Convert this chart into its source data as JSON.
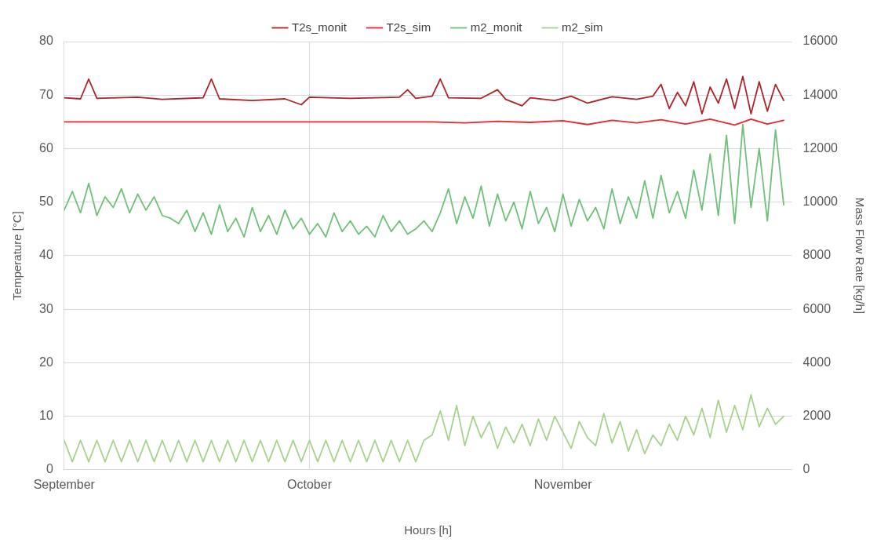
{
  "chart_data": {
    "type": "line",
    "xlabel": "Hours [h]",
    "ylabel": "Temperature [°C]",
    "y2label": "Mass Flow Rate [kg/h]",
    "xlim": [
      "--09-01",
      "--11-29"
    ],
    "xticks": [
      {
        "value": "--09-01",
        "label": "September"
      },
      {
        "value": "--10-01",
        "label": "October"
      },
      {
        "value": "--11-01",
        "label": "November"
      }
    ],
    "ylim": [
      0,
      80
    ],
    "yticks": [
      0,
      10,
      20,
      30,
      40,
      50,
      60,
      70,
      80
    ],
    "y2lim": [
      0,
      16000
    ],
    "y2ticks": [
      0,
      2000,
      4000,
      6000,
      8000,
      10000,
      12000,
      14000,
      16000
    ],
    "grid": true,
    "legend": "top",
    "marker": "none",
    "line_style": "solid",
    "x": [
      "--09-01",
      "--09-02",
      "--09-03",
      "--09-04",
      "--09-05",
      "--09-06",
      "--09-07",
      "--09-08",
      "--09-09",
      "--09-10",
      "--09-11",
      "--09-12",
      "--09-13",
      "--09-14",
      "--09-15",
      "--09-16",
      "--09-17",
      "--09-18",
      "--09-19",
      "--09-20",
      "--09-21",
      "--09-22",
      "--09-23",
      "--09-24",
      "--09-25",
      "--09-26",
      "--09-27",
      "--09-28",
      "--09-29",
      "--09-30",
      "--10-01",
      "--10-02",
      "--10-03",
      "--10-04",
      "--10-05",
      "--10-06",
      "--10-07",
      "--10-08",
      "--10-09",
      "--10-10",
      "--10-11",
      "--10-12",
      "--10-13",
      "--10-14",
      "--10-15",
      "--10-16",
      "--10-17",
      "--10-18",
      "--10-19",
      "--10-20",
      "--10-21",
      "--10-22",
      "--10-23",
      "--10-24",
      "--10-25",
      "--10-26",
      "--10-27",
      "--10-28",
      "--10-29",
      "--10-30",
      "--10-31",
      "--11-01",
      "--11-02",
      "--11-03",
      "--11-04",
      "--11-05",
      "--11-06",
      "--11-07",
      "--11-08",
      "--11-09",
      "--11-10",
      "--11-11",
      "--11-12",
      "--11-13",
      "--11-14",
      "--11-15",
      "--11-16",
      "--11-17",
      "--11-18",
      "--11-19",
      "--11-20",
      "--11-21",
      "--11-22",
      "--11-23",
      "--11-24",
      "--11-25",
      "--11-26",
      "--11-27",
      "--11-28"
    ],
    "series": [
      {
        "name": "T2s_monit",
        "color": "#b0222a",
        "x": [
          "--09-01",
          "--09-03",
          "--09-04",
          "--09-05",
          "--09-10",
          "--09-13",
          "--09-18",
          "--09-19",
          "--09-20",
          "--09-24",
          "--09-28",
          "--09-30",
          "--10-01",
          "--10-06",
          "--10-12",
          "--10-13",
          "--10-14",
          "--10-16",
          "--10-17",
          "--10-18",
          "--10-22",
          "--10-24",
          "--10-25",
          "--10-27",
          "--10-28",
          "--10-31",
          "--11-02",
          "--11-04",
          "--11-07",
          "--11-10",
          "--11-12",
          "--11-13",
          "--11-14",
          "--11-15",
          "--11-16",
          "--11-17",
          "--11-18",
          "--11-19",
          "--11-20",
          "--11-21",
          "--11-22",
          "--11-23",
          "--11-24",
          "--11-25",
          "--11-26",
          "--11-27",
          "--11-28"
        ],
        "values": [
          69.5,
          69.3,
          73,
          69.4,
          69.6,
          69.2,
          69.5,
          73,
          69.3,
          69.0,
          69.3,
          68.2,
          69.6,
          69.4,
          69.6,
          71,
          69.4,
          69.8,
          73,
          69.5,
          69.4,
          71,
          69.2,
          68.0,
          69.5,
          69.0,
          69.8,
          68.5,
          69.7,
          69.2,
          69.8,
          72,
          67.5,
          70.5,
          68,
          72.5,
          66.5,
          71.5,
          68.5,
          73,
          67.5,
          73.5,
          66.5,
          72.5,
          67,
          72,
          69
        ]
      },
      {
        "name": "T2s_sim",
        "color": "#e8282d",
        "x": [
          "--09-01",
          "--10-16",
          "--10-20",
          "--10-24",
          "--10-28",
          "--11-01",
          "--11-04",
          "--11-07",
          "--11-10",
          "--11-13",
          "--11-16",
          "--11-19",
          "--11-22",
          "--11-24",
          "--11-26",
          "--11-28"
        ],
        "values": [
          65,
          65,
          64.8,
          65.1,
          64.9,
          65.2,
          64.5,
          65.3,
          64.8,
          65.4,
          64.6,
          65.5,
          64.4,
          65.5,
          64.6,
          65.3
        ]
      },
      {
        "name": "m2_monit",
        "color": "#70bf7a",
        "axis": "y2",
        "values": [
          9700,
          10400,
          9600,
          10700,
          9500,
          10200,
          9800,
          10500,
          9600,
          10300,
          9700,
          10200,
          9500,
          9400,
          9200,
          9700,
          8900,
          9600,
          8800,
          9900,
          8900,
          9400,
          8700,
          9800,
          8900,
          9500,
          8800,
          9700,
          9000,
          9400,
          8800,
          9200,
          8700,
          9600,
          8900,
          9300,
          8800,
          9100,
          8700,
          9500,
          8900,
          9300,
          8800,
          9000,
          9300,
          8900,
          9600,
          10500,
          9200,
          10200,
          9400,
          10600,
          9100,
          10300,
          9300,
          10000,
          9000,
          10400,
          9200,
          9800,
          8900,
          10300,
          9100,
          10100,
          9300,
          9800,
          9000,
          10500,
          9200,
          10200,
          9400,
          10800,
          9400,
          11000,
          9600,
          10400,
          9400,
          11200,
          9700,
          11800,
          9500,
          12500,
          9200,
          12900,
          9800,
          12000,
          9300,
          12700,
          9900
        ]
      },
      {
        "name": "m2_sim",
        "color": "#a9d18e",
        "axis": "y2",
        "values": [
          1100,
          300,
          1100,
          300,
          1100,
          300,
          1100,
          300,
          1100,
          300,
          1100,
          300,
          1100,
          300,
          1100,
          300,
          1100,
          300,
          1100,
          300,
          1100,
          300,
          1100,
          300,
          1100,
          300,
          1100,
          300,
          1100,
          300,
          1100,
          300,
          1100,
          300,
          1100,
          300,
          1100,
          300,
          1100,
          300,
          1100,
          300,
          1100,
          300,
          1100,
          1300,
          2200,
          1100,
          2400,
          900,
          2000,
          1200,
          1800,
          800,
          1600,
          1000,
          1700,
          900,
          1900,
          1100,
          2000,
          1400,
          800,
          1800,
          1200,
          900,
          2100,
          1000,
          1800,
          700,
          1500,
          600,
          1300,
          900,
          1700,
          1100,
          2000,
          1300,
          2300,
          1200,
          2600,
          1400,
          2400,
          1500,
          2800,
          1600,
          2300,
          1700,
          2000
        ]
      }
    ]
  }
}
